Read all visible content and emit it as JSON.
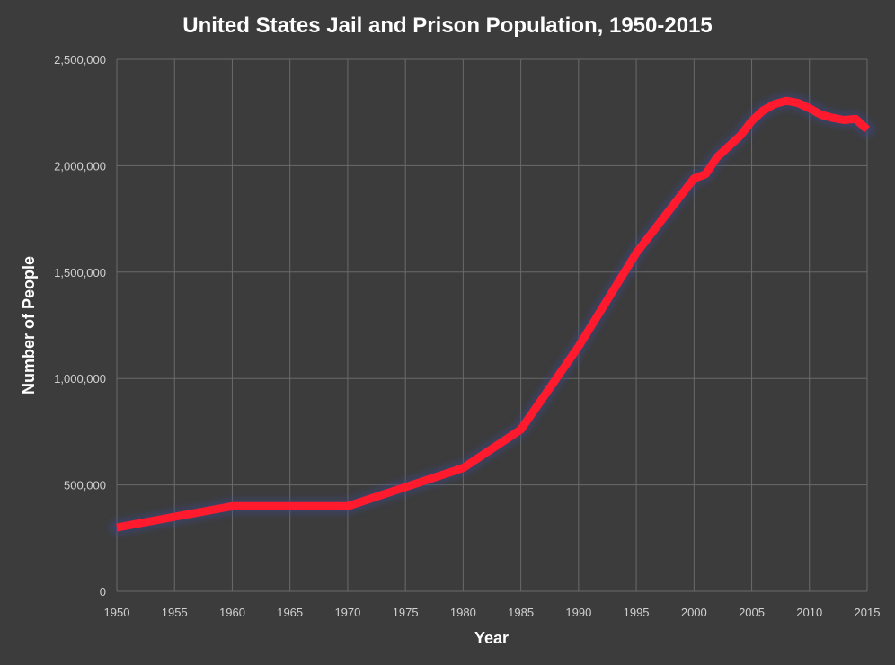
{
  "chart_data": {
    "type": "line",
    "title": "United States Jail and Prison Population, 1950-2015",
    "xlabel": "Year",
    "ylabel": "Number of People",
    "xlim": [
      1950,
      2015
    ],
    "ylim": [
      0,
      2500000
    ],
    "grid": true,
    "legend": "none",
    "x_ticks": [
      "1950",
      "1955",
      "1960",
      "1965",
      "1970",
      "1975",
      "1980",
      "1985",
      "1990",
      "1995",
      "2000",
      "2005",
      "2010",
      "2015"
    ],
    "y_ticks": [
      "0",
      "500,000",
      "1,000,000",
      "1,500,000",
      "2,000,000",
      "2,500,000"
    ],
    "series": [
      {
        "color": "#ff1a2e",
        "x": [
          1950,
          1955,
          1960,
          1965,
          1970,
          1975,
          1980,
          1985,
          1990,
          1995,
          2000,
          2001,
          2002,
          2003,
          2004,
          2005,
          2006,
          2007,
          2008,
          2009,
          2010,
          2011,
          2012,
          2013,
          2014,
          2015
        ],
        "values": [
          300000,
          350000,
          400000,
          400000,
          400000,
          490000,
          580000,
          760000,
          1150000,
          1590000,
          1940000,
          1960000,
          2040000,
          2090000,
          2140000,
          2210000,
          2260000,
          2290000,
          2305000,
          2295000,
          2270000,
          2240000,
          2225000,
          2215000,
          2220000,
          2170000
        ]
      }
    ]
  }
}
